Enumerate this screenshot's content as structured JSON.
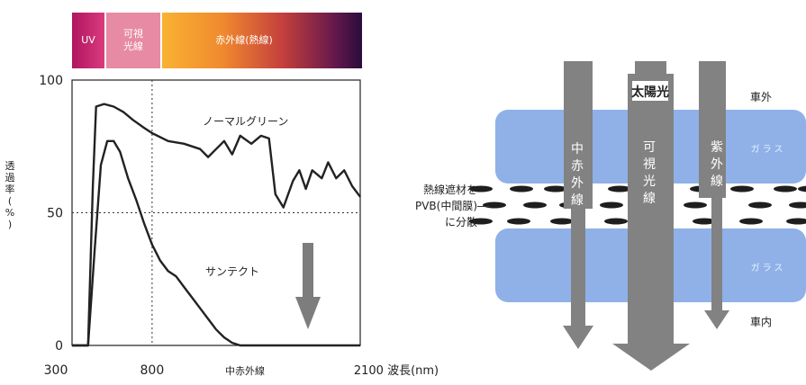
{
  "spectrum_band": {
    "uv_label": "UV",
    "visible_label": "可視\n光線",
    "infrared_label": "赤外線(熱線)"
  },
  "chart_data": {
    "type": "line",
    "y_axis": {
      "title": "透過率(%)",
      "ticks": [
        "100",
        "50",
        "0"
      ],
      "ylim": [
        0,
        100
      ]
    },
    "x_axis": {
      "ticks": [
        "300",
        "800",
        "中赤外線",
        "2100 波長(nm)"
      ],
      "xlim": [
        300,
        2100
      ]
    },
    "reference_lines": {
      "x": 800,
      "y": 50
    },
    "series": [
      {
        "name": "ノーマルグリーン",
        "points": [
          [
            300,
            0
          ],
          [
            400,
            0
          ],
          [
            430,
            60
          ],
          [
            450,
            90
          ],
          [
            500,
            91
          ],
          [
            560,
            90
          ],
          [
            620,
            88
          ],
          [
            680,
            85
          ],
          [
            750,
            82
          ],
          [
            800,
            80
          ],
          [
            900,
            77
          ],
          [
            1000,
            76
          ],
          [
            1100,
            74
          ],
          [
            1150,
            71
          ],
          [
            1200,
            74
          ],
          [
            1250,
            77
          ],
          [
            1300,
            72
          ],
          [
            1350,
            79
          ],
          [
            1420,
            76
          ],
          [
            1480,
            79
          ],
          [
            1530,
            78
          ],
          [
            1570,
            57
          ],
          [
            1620,
            52
          ],
          [
            1680,
            62
          ],
          [
            1720,
            66
          ],
          [
            1760,
            59
          ],
          [
            1800,
            66
          ],
          [
            1860,
            63
          ],
          [
            1900,
            69
          ],
          [
            1950,
            63
          ],
          [
            2000,
            66
          ],
          [
            2050,
            60
          ],
          [
            2100,
            56
          ]
        ]
      },
      {
        "name": "サンテクト",
        "points": [
          [
            300,
            0
          ],
          [
            400,
            0
          ],
          [
            440,
            35
          ],
          [
            480,
            68
          ],
          [
            520,
            77
          ],
          [
            560,
            77
          ],
          [
            600,
            73
          ],
          [
            650,
            63
          ],
          [
            700,
            55
          ],
          [
            750,
            46
          ],
          [
            800,
            38
          ],
          [
            850,
            32
          ],
          [
            900,
            28
          ],
          [
            950,
            26
          ],
          [
            1000,
            22
          ],
          [
            1050,
            18
          ],
          [
            1100,
            14
          ],
          [
            1150,
            10
          ],
          [
            1200,
            6
          ],
          [
            1250,
            3
          ],
          [
            1300,
            1
          ],
          [
            1350,
            0
          ],
          [
            2100,
            0
          ]
        ]
      }
    ],
    "annotation": "arrow-down",
    "colors": {
      "curve": "#222222",
      "arrow": "#7d7d7d",
      "grid": "#333333"
    }
  },
  "diagram": {
    "sunlight_label": "太陽光",
    "outside_label": "車外",
    "inside_label": "車内",
    "glass_label": "ガラス",
    "dispersion_label_lines": [
      "熱線遮材を",
      "PVB(中間膜)",
      "に分散"
    ],
    "arrows": [
      {
        "label": "中赤外線",
        "blocked": false
      },
      {
        "label": "可視光線",
        "blocked": false
      },
      {
        "label": "紫外線",
        "blocked": false
      }
    ],
    "colors": {
      "glass": "#8fb1e8",
      "arrow": "#828282",
      "dash": "#1e1e1e"
    }
  }
}
